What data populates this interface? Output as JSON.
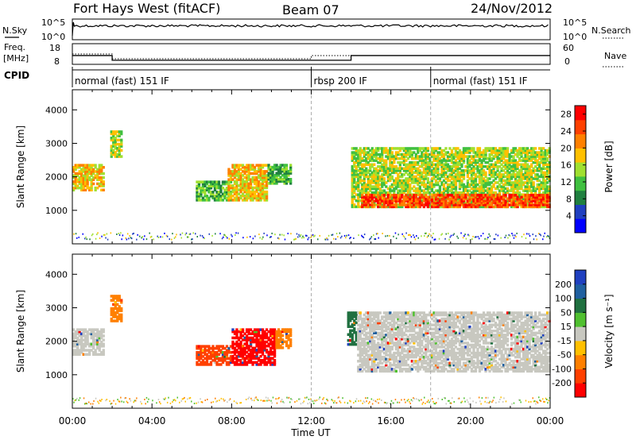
{
  "header": {
    "station": "Fort Hays West (fitACF)",
    "beam": "Beam 07",
    "date": "24/Nov/2012"
  },
  "top_panels": {
    "nsky_label": "N.Sky",
    "nsky_ticks": [
      "10^5",
      "10^0"
    ],
    "nsearch_label": "N.Search",
    "nsearch_ticks": [
      "10^5",
      "10^0"
    ],
    "freq_label": "Freq.",
    "freq_unit": "[MHz]",
    "freq_ticks": [
      "18",
      "8"
    ],
    "nave_label": "Nave",
    "nave_ticks": [
      "60",
      "0"
    ],
    "cpid_label": "CPID"
  },
  "cpid_segments": [
    {
      "label": "normal (fast) 151 IF",
      "start_h": 0,
      "end_h": 12
    },
    {
      "label": "rbsp 200 IF",
      "start_h": 12,
      "end_h": 18
    },
    {
      "label": "normal (fast) 151 IF",
      "start_h": 18,
      "end_h": 24
    }
  ],
  "chart_data": [
    {
      "type": "heatmap",
      "title": "Power",
      "xlabel": "Time UT",
      "ylabel": "Slant Range [km]",
      "x_ticks": [
        "00:00",
        "04:00",
        "08:00",
        "12:00",
        "16:00",
        "20:00",
        "00:00"
      ],
      "xlim": [
        0,
        24
      ],
      "ylim": [
        0,
        4600
      ],
      "y_ticks": [
        1000,
        2000,
        3000,
        4000
      ],
      "colorbar": {
        "label": "Power [dB]",
        "ticks": [
          4,
          8,
          12,
          16,
          20,
          24,
          28
        ],
        "range": [
          0,
          30
        ],
        "colors": [
          "#0000ff",
          "#2040c0",
          "#208040",
          "#40c040",
          "#a0e030",
          "#ffc000",
          "#ff8000",
          "#ff4000",
          "#ff0000"
        ]
      },
      "echo_regions": [
        {
          "t": [
            0.0,
            1.6
          ],
          "range_km": [
            1600,
            2400
          ],
          "power_db": 18
        },
        {
          "t": [
            1.9,
            2.5
          ],
          "range_km": [
            2600,
            3400
          ],
          "power_db": 16
        },
        {
          "t": [
            6.2,
            8.0
          ],
          "range_km": [
            1300,
            1900
          ],
          "power_db": 10
        },
        {
          "t": [
            7.8,
            9.8
          ],
          "range_km": [
            1300,
            2400
          ],
          "power_db": 20
        },
        {
          "t": [
            9.8,
            11.0
          ],
          "range_km": [
            1800,
            2400
          ],
          "power_db": 10
        },
        {
          "t": [
            14.0,
            24.0
          ],
          "range_km": [
            1100,
            2900
          ],
          "power_db": 14
        },
        {
          "t": [
            14.5,
            24.0
          ],
          "range_km": [
            1100,
            1500
          ],
          "power_db": 26
        }
      ]
    },
    {
      "type": "heatmap",
      "title": "Velocity",
      "xlabel": "Time UT",
      "ylabel": "Slant Range [km]",
      "x_ticks": [
        "00:00",
        "04:00",
        "08:00",
        "12:00",
        "16:00",
        "20:00",
        "00:00"
      ],
      "xlim": [
        0,
        24
      ],
      "ylim": [
        0,
        4600
      ],
      "y_ticks": [
        1000,
        2000,
        3000,
        4000
      ],
      "colorbar": {
        "label": "Velocity [m s⁻¹]",
        "ticks": [
          200,
          100,
          50,
          15,
          -15,
          -50,
          -100,
          -200
        ],
        "colors": [
          "#2040c0",
          "#2060a0",
          "#207040",
          "#50c030",
          "#c8c8c0",
          "#ffc000",
          "#ff8000",
          "#ff4000",
          "#ff0000"
        ]
      },
      "echo_regions": [
        {
          "t": [
            0.0,
            1.6
          ],
          "range_km": [
            1600,
            2400
          ],
          "velocity": 0
        },
        {
          "t": [
            1.9,
            2.5
          ],
          "range_km": [
            2600,
            3400
          ],
          "velocity": -50
        },
        {
          "t": [
            6.2,
            8.0
          ],
          "range_km": [
            1300,
            1900
          ],
          "velocity": -100
        },
        {
          "t": [
            8.0,
            10.2
          ],
          "range_km": [
            1300,
            2400
          ],
          "velocity": -200
        },
        {
          "t": [
            10.2,
            11.0
          ],
          "range_km": [
            1800,
            2400
          ],
          "velocity": -50
        },
        {
          "t": [
            13.8,
            14.3
          ],
          "range_km": [
            1900,
            2900
          ],
          "velocity": 50
        },
        {
          "t": [
            14.3,
            24.0
          ],
          "range_km": [
            1100,
            2900
          ],
          "velocity": 0
        }
      ]
    }
  ]
}
